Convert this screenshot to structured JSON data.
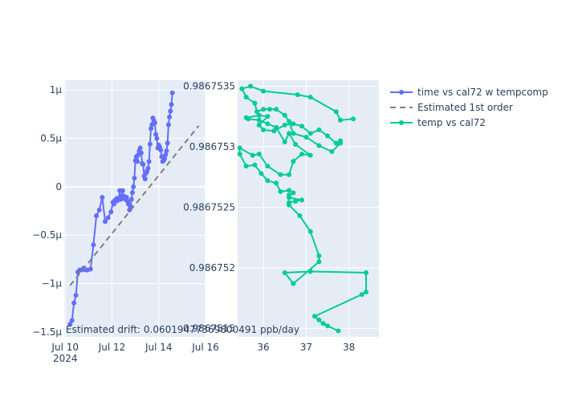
{
  "chart_data": [
    {
      "type": "line",
      "panel": "left",
      "x_axis": {
        "type": "date",
        "range": [
          "2024-07-09T23:00",
          "2024-07-16T00:00"
        ],
        "ticks": [
          {
            "value": "2024-07-10",
            "label": "Jul 10",
            "sublabel": "2024"
          },
          {
            "value": "2024-07-12",
            "label": "Jul 12"
          },
          {
            "value": "2024-07-14",
            "label": "Jul 14"
          },
          {
            "value": "2024-07-16",
            "label": "Jul 16"
          }
        ]
      },
      "y_axis": {
        "range": [
          -1.55e-06,
          1.1e-06
        ],
        "ticks": [
          {
            "value": -1.5e-06,
            "label": "−1.5μ"
          },
          {
            "value": -1e-06,
            "label": "−1μ"
          },
          {
            "value": -5e-07,
            "label": "−0.5μ"
          },
          {
            "value": 0,
            "label": "0"
          },
          {
            "value": 5e-07,
            "label": "0.5μ"
          },
          {
            "value": 1e-06,
            "label": "1μ"
          }
        ]
      },
      "grid": true,
      "series": [
        {
          "name": "time vs cal72 w tempcomp",
          "color": "#636efa",
          "mode": "lines+markers",
          "points": [
            [
              "2024-07-10T05:00",
              -1.42e-06
            ],
            [
              "2024-07-10T07:00",
              -1.38e-06
            ],
            [
              "2024-07-10T09:00",
              -1.2e-06
            ],
            [
              "2024-07-10T11:00",
              -1.12e-06
            ],
            [
              "2024-07-10T13:00",
              -8.8e-07
            ],
            [
              "2024-07-10T15:00",
              -8.6e-07
            ],
            [
              "2024-07-10T17:00",
              -8.6e-07
            ],
            [
              "2024-07-10T19:00",
              -8.4e-07
            ],
            [
              "2024-07-10T21:00",
              -8.6e-07
            ],
            [
              "2024-07-10T23:00",
              -8.6e-07
            ],
            [
              "2024-07-11T02:00",
              -8.5e-07
            ],
            [
              "2024-07-11T05:00",
              -6e-07
            ],
            [
              "2024-07-11T08:00",
              -3e-07
            ],
            [
              "2024-07-11T11:00",
              -2.4e-07
            ],
            [
              "2024-07-11T14:00",
              -1.1e-07
            ],
            [
              "2024-07-11T17:00",
              -3.6e-07
            ],
            [
              "2024-07-11T20:00",
              -3.2e-07
            ],
            [
              "2024-07-11T23:00",
              -2.6e-07
            ],
            [
              "2024-07-12T01:00",
              -1.6e-07
            ],
            [
              "2024-07-12T02:00",
              -1.8e-07
            ],
            [
              "2024-07-12T03:00",
              -1.4e-07
            ],
            [
              "2024-07-12T04:00",
              -1.5e-07
            ],
            [
              "2024-07-12T05:00",
              -1.2e-07
            ],
            [
              "2024-07-12T06:00",
              -1.4e-07
            ],
            [
              "2024-07-12T07:00",
              -1.2e-07
            ],
            [
              "2024-07-12T08:00",
              -4e-08
            ],
            [
              "2024-07-12T09:00",
              -1.3e-07
            ],
            [
              "2024-07-12T10:00",
              -1e-07
            ],
            [
              "2024-07-12T11:00",
              -4e-08
            ],
            [
              "2024-07-12T12:00",
              -1.2e-07
            ],
            [
              "2024-07-12T13:00",
              -1e-07
            ],
            [
              "2024-07-12T14:00",
              -1.3e-07
            ],
            [
              "2024-07-12T15:00",
              -1.1e-07
            ],
            [
              "2024-07-12T16:00",
              -1.5e-07
            ],
            [
              "2024-07-12T17:00",
              -1.8e-07
            ],
            [
              "2024-07-12T18:00",
              -2.4e-07
            ],
            [
              "2024-07-12T19:00",
              -2e-07
            ],
            [
              "2024-07-12T20:00",
              -1.3e-07
            ],
            [
              "2024-07-12T21:00",
              -6e-08
            ],
            [
              "2024-07-12T22:00",
              0.0
            ],
            [
              "2024-07-12T23:00",
              9e-08
            ],
            [
              "2024-07-13T00:00",
              2.7e-07
            ],
            [
              "2024-07-13T01:00",
              3.1e-07
            ],
            [
              "2024-07-13T02:00",
              2.6e-07
            ],
            [
              "2024-07-13T03:00",
              3.3e-07
            ],
            [
              "2024-07-13T04:00",
              3.7e-07
            ],
            [
              "2024-07-13T05:00",
              4e-07
            ],
            [
              "2024-07-13T06:00",
              3.5e-07
            ],
            [
              "2024-07-13T07:00",
              2.4e-07
            ],
            [
              "2024-07-13T08:00",
              2.3e-07
            ],
            [
              "2024-07-13T09:00",
              1.1e-07
            ],
            [
              "2024-07-13T10:00",
              8e-08
            ],
            [
              "2024-07-13T11:00",
              1.4e-07
            ],
            [
              "2024-07-13T12:00",
              1.6e-07
            ],
            [
              "2024-07-13T13:00",
              1.9e-07
            ],
            [
              "2024-07-13T14:00",
              2.6e-07
            ],
            [
              "2024-07-13T15:00",
              4.4e-07
            ],
            [
              "2024-07-13T16:00",
              6e-07
            ],
            [
              "2024-07-13T17:00",
              6.4e-07
            ],
            [
              "2024-07-13T18:00",
              7.1e-07
            ],
            [
              "2024-07-13T19:00",
              6.8e-07
            ],
            [
              "2024-07-13T20:00",
              6.6e-07
            ],
            [
              "2024-07-13T21:00",
              5.4e-07
            ],
            [
              "2024-07-13T22:00",
              5e-07
            ],
            [
              "2024-07-13T23:00",
              4e-07
            ],
            [
              "2024-07-14T00:00",
              4.3e-07
            ],
            [
              "2024-07-14T01:00",
              4.1e-07
            ],
            [
              "2024-07-14T02:00",
              3.8e-07
            ],
            [
              "2024-07-14T03:00",
              3.1e-07
            ],
            [
              "2024-07-14T04:00",
              2.6e-07
            ],
            [
              "2024-07-14T05:00",
              2.7e-07
            ],
            [
              "2024-07-14T06:00",
              2.9e-07
            ],
            [
              "2024-07-14T07:00",
              3.3e-07
            ],
            [
              "2024-07-14T08:00",
              3.7e-07
            ],
            [
              "2024-07-14T09:00",
              4.5e-07
            ],
            [
              "2024-07-14T10:00",
              6.4e-07
            ],
            [
              "2024-07-14T11:00",
              7.2e-07
            ],
            [
              "2024-07-14T12:00",
              7.8e-07
            ],
            [
              "2024-07-14T13:00",
              8.5e-07
            ],
            [
              "2024-07-14T14:00",
              9.7e-07
            ]
          ]
        },
        {
          "name": "Estimated 1st order",
          "color": "#7f7f7f",
          "mode": "dashed line",
          "points": [
            [
              "2024-07-10T05:00",
              -1.02e-06
            ],
            [
              "2024-07-15T17:00",
              6.3e-07
            ]
          ]
        }
      ],
      "annotations": [
        {
          "text": "Estimated drift:  0.06019477369800491 ppb/day"
        }
      ]
    },
    {
      "type": "line",
      "panel": "right",
      "x_axis": {
        "range": [
          35.4,
          38.7
        ],
        "ticks": [
          {
            "value": 36,
            "label": "36"
          },
          {
            "value": 37,
            "label": "37"
          },
          {
            "value": 38,
            "label": "38"
          }
        ]
      },
      "y_axis": {
        "range": [
          0.98675143,
          0.98675355
        ],
        "ticks": [
          {
            "value": 0.9867515,
            "label": "0.9867515"
          },
          {
            "value": 0.986752,
            "label": "0.986752"
          },
          {
            "value": 0.9867525,
            "label": "0.9867525"
          },
          {
            "value": 0.986753,
            "label": "0.986753"
          },
          {
            "value": 0.9867535,
            "label": "0.9867535"
          }
        ]
      },
      "grid": true,
      "series": [
        {
          "name": "temp vs cal72",
          "color": "#00cc96",
          "mode": "lines+markers",
          "points": [
            [
              37.75,
              0.98675148
            ],
            [
              37.5,
              0.98675152
            ],
            [
              37.4,
              0.98675154
            ],
            [
              37.3,
              0.98675157
            ],
            [
              37.2,
              0.9867516
            ],
            [
              38.3,
              0.98675178
            ],
            [
              38.4,
              0.9867518
            ],
            [
              38.4,
              0.98675196
            ],
            [
              37.1,
              0.98675197
            ],
            [
              36.5,
              0.98675196
            ],
            [
              36.7,
              0.98675187
            ],
            [
              37.3,
              0.98675205
            ],
            [
              37.3,
              0.9867521
            ],
            [
              37.1,
              0.9867523
            ],
            [
              36.85,
              0.98675243
            ],
            [
              36.6,
              0.98675252
            ],
            [
              36.6,
              0.98675254
            ],
            [
              36.75,
              0.98675255
            ],
            [
              36.9,
              0.98675256
            ],
            [
              36.6,
              0.98675258
            ],
            [
              36.6,
              0.9867526
            ],
            [
              36.7,
              0.98675262
            ],
            [
              36.6,
              0.98675264
            ],
            [
              36.4,
              0.98675263
            ],
            [
              36.3,
              0.9867527
            ],
            [
              36.1,
              0.98675272
            ],
            [
              35.95,
              0.98675278
            ],
            [
              35.8,
              0.98675285
            ],
            [
              35.6,
              0.98675284
            ],
            [
              35.45,
              0.98675294
            ],
            [
              35.45,
              0.98675299
            ],
            [
              35.75,
              0.98675293
            ],
            [
              35.9,
              0.98675294
            ],
            [
              36.1,
              0.98675284
            ],
            [
              36.4,
              0.98675277
            ],
            [
              36.6,
              0.98675277
            ],
            [
              36.7,
              0.98675288
            ],
            [
              36.9,
              0.98675294
            ],
            [
              37.1,
              0.98675293
            ],
            [
              36.75,
              0.98675302
            ],
            [
              36.6,
              0.98675311
            ],
            [
              36.5,
              0.98675304
            ],
            [
              36.3,
              0.98675316
            ],
            [
              36.1,
              0.98675319
            ],
            [
              35.9,
              0.98675322
            ],
            [
              35.65,
              0.98675323
            ],
            [
              35.6,
              0.98675324
            ],
            [
              35.9,
              0.98675326
            ],
            [
              36.1,
              0.98675325
            ],
            [
              35.9,
              0.98675318
            ],
            [
              36.0,
              0.98675314
            ],
            [
              36.25,
              0.98675313
            ],
            [
              36.5,
              0.98675318
            ],
            [
              36.7,
              0.98675319
            ],
            [
              36.9,
              0.98675317
            ],
            [
              37.1,
              0.98675311
            ],
            [
              37.3,
              0.98675314
            ],
            [
              37.5,
              0.98675309
            ],
            [
              37.7,
              0.98675303
            ],
            [
              37.8,
              0.98675305
            ],
            [
              37.8,
              0.98675303
            ],
            [
              37.6,
              0.98675296
            ],
            [
              37.3,
              0.98675301
            ],
            [
              37.0,
              0.98675308
            ],
            [
              36.7,
              0.98675311
            ],
            [
              36.6,
              0.98675321
            ],
            [
              36.5,
              0.98675326
            ],
            [
              36.3,
              0.98675331
            ],
            [
              36.15,
              0.98675331
            ],
            [
              36.0,
              0.98675331
            ],
            [
              35.85,
              0.98675329
            ],
            [
              35.8,
              0.98675336
            ],
            [
              35.6,
              0.98675341
            ],
            [
              35.5,
              0.98675348
            ],
            [
              35.7,
              0.9867535
            ],
            [
              36.0,
              0.98675346
            ],
            [
              36.8,
              0.98675343
            ],
            [
              37.1,
              0.98675341
            ],
            [
              37.7,
              0.98675329
            ],
            [
              37.8,
              0.98675322
            ],
            [
              38.1,
              0.98675323
            ]
          ]
        }
      ]
    }
  ],
  "legend": {
    "placement": "top-right",
    "items": [
      {
        "label": "time vs cal72 w tempcomp",
        "color": "#636efa",
        "style": "line-marker"
      },
      {
        "label": "Estimated 1st order",
        "color": "#7f7f7f",
        "style": "dash"
      },
      {
        "label": "temp vs cal72",
        "color": "#00cc96",
        "style": "line-marker"
      }
    ]
  },
  "colors": {
    "plot_bg": "#e5ecf6",
    "grid": "#ffffff",
    "text": "#2a3f5f"
  }
}
